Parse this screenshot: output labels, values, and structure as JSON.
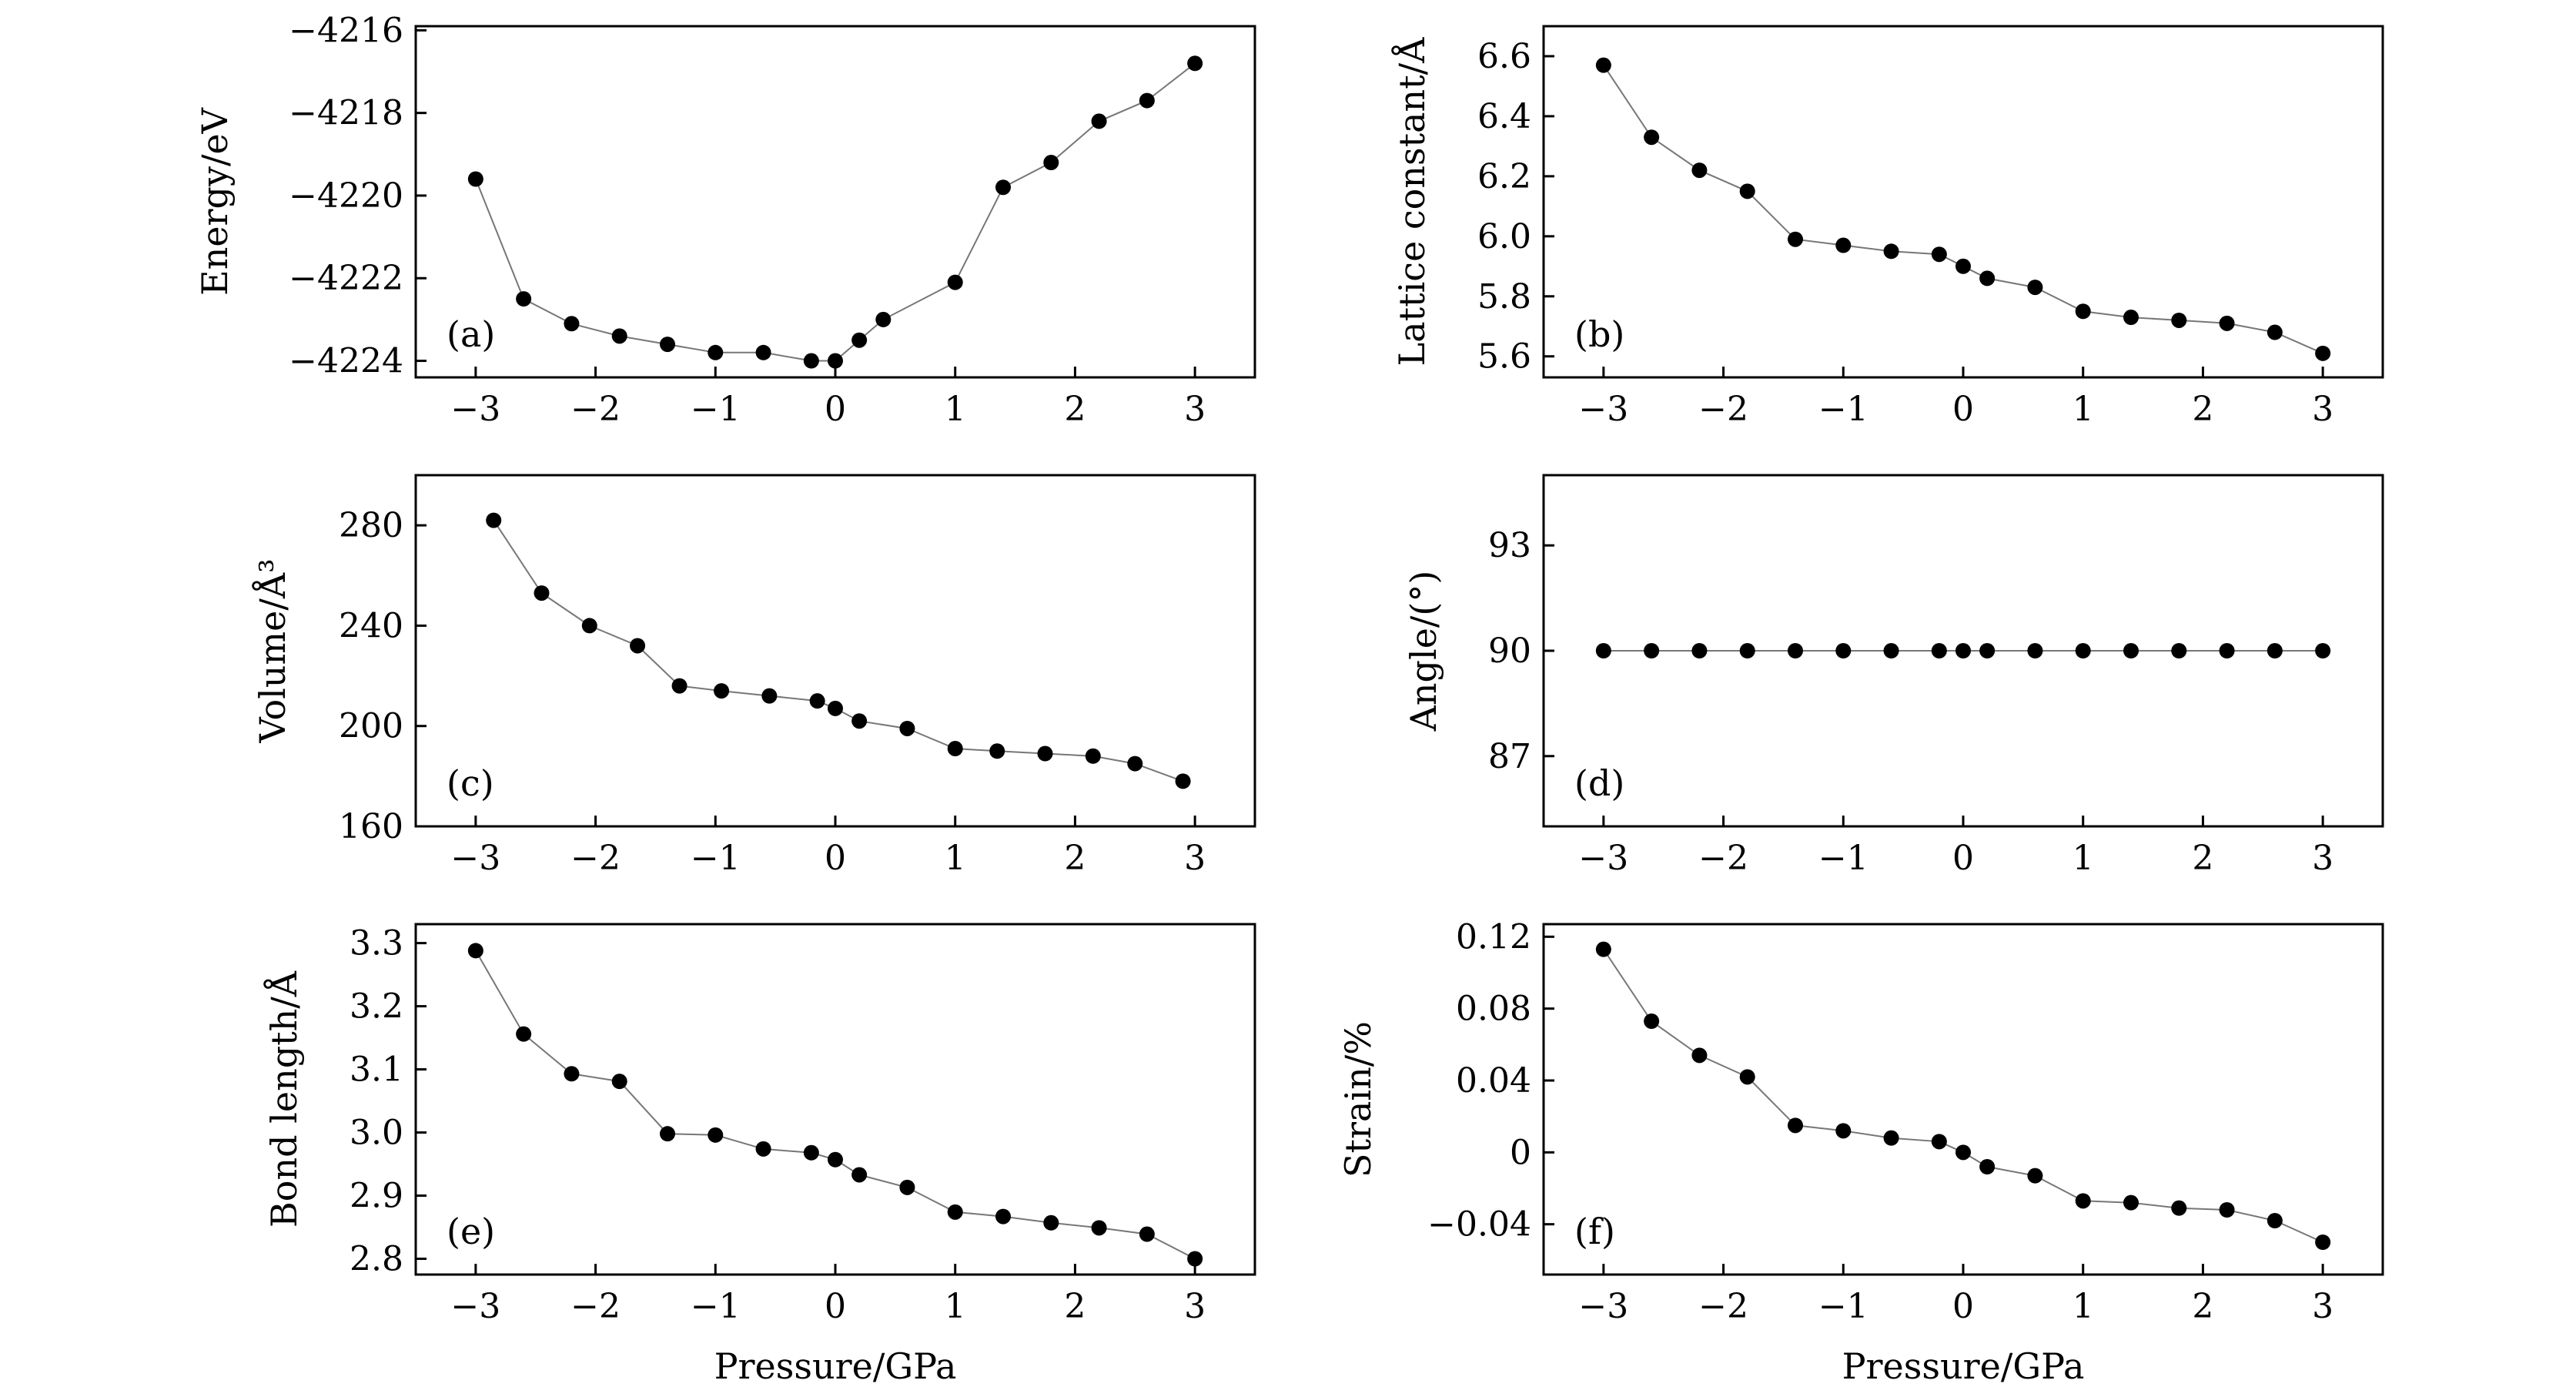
{
  "chart_data": [
    {
      "type": "scatter",
      "panel_label": "(a)",
      "ylabel": "Energy/eV",
      "xlabel": "",
      "xlim": [
        -3.5,
        3.5
      ],
      "ylim": [
        -4224.4,
        -4215.9
      ],
      "xticks": [
        -3,
        -2,
        -1,
        0,
        1,
        2,
        3
      ],
      "xtick_labels": [
        "−3",
        "−2",
        "−1",
        "0",
        "1",
        "2",
        "3"
      ],
      "yticks": [
        -4224,
        -4222,
        -4220,
        -4218,
        -4216
      ],
      "ytick_labels": [
        "−4224",
        "−4222",
        "−4220",
        "−4218",
        "−4216"
      ],
      "series": [
        {
          "x": [
            -3,
            -2.6,
            -2.2,
            -1.8,
            -1.4,
            -1,
            -0.6,
            -0.2,
            0,
            0.2,
            0.4,
            1,
            1.4,
            1.8,
            2.2,
            2.6,
            3
          ],
          "y": [
            -4219.6,
            -4222.5,
            -4223.1,
            -4223.4,
            -4223.6,
            -4223.8,
            -4223.8,
            -4224.0,
            -4224.0,
            -4223.5,
            -4223.0,
            -4222.1,
            -4219.8,
            -4219.2,
            -4218.2,
            -4217.7,
            -4216.8
          ]
        }
      ]
    },
    {
      "type": "scatter",
      "panel_label": "(b)",
      "ylabel": "Lattice constant/Å",
      "xlabel": "",
      "xlim": [
        -3.5,
        3.5
      ],
      "ylim": [
        5.53,
        6.7
      ],
      "xticks": [
        -3,
        -2,
        -1,
        0,
        1,
        2,
        3
      ],
      "xtick_labels": [
        "−3",
        "−2",
        "−1",
        "0",
        "1",
        "2",
        "3"
      ],
      "yticks": [
        5.6,
        5.8,
        6.0,
        6.2,
        6.4,
        6.6
      ],
      "ytick_labels": [
        "5.6",
        "5.8",
        "6.0",
        "6.2",
        "6.4",
        "6.6"
      ],
      "series": [
        {
          "x": [
            -3,
            -2.6,
            -2.2,
            -1.8,
            -1.4,
            -1,
            -0.6,
            -0.2,
            0,
            0.2,
            0.6,
            1,
            1.4,
            1.8,
            2.2,
            2.6,
            3
          ],
          "y": [
            6.57,
            6.33,
            6.22,
            6.15,
            5.99,
            5.97,
            5.95,
            5.94,
            5.9,
            5.86,
            5.83,
            5.75,
            5.73,
            5.72,
            5.71,
            5.68,
            5.61
          ]
        }
      ]
    },
    {
      "type": "scatter",
      "panel_label": "(c)",
      "ylabel": "Volume/Å³",
      "xlabel": "",
      "xlim": [
        -3.5,
        3.5
      ],
      "ylim": [
        160,
        300
      ],
      "xticks": [
        -3,
        -2,
        -1,
        0,
        1,
        2,
        3
      ],
      "xtick_labels": [
        "−3",
        "−2",
        "−1",
        "0",
        "1",
        "2",
        "3"
      ],
      "yticks": [
        160,
        200,
        240,
        280
      ],
      "ytick_labels": [
        "160",
        "200",
        "240",
        "280"
      ],
      "series": [
        {
          "x": [
            -2.85,
            -2.45,
            -2.05,
            -1.65,
            -1.3,
            -0.95,
            -0.55,
            -0.15,
            0,
            0.2,
            0.6,
            1,
            1.35,
            1.75,
            2.15,
            2.5,
            2.9
          ],
          "y": [
            282,
            253,
            240,
            232,
            216,
            214,
            212,
            210,
            207,
            202,
            199,
            191,
            190,
            189,
            188,
            185,
            178
          ]
        }
      ]
    },
    {
      "type": "scatter",
      "panel_label": "(d)",
      "ylabel": "Angle/(°)",
      "xlabel": "",
      "xlim": [
        -3.5,
        3.5
      ],
      "ylim": [
        85,
        95
      ],
      "xticks": [
        -3,
        -2,
        -1,
        0,
        1,
        2,
        3
      ],
      "xtick_labels": [
        "−3",
        "−2",
        "−1",
        "0",
        "1",
        "2",
        "3"
      ],
      "yticks": [
        87,
        90,
        93
      ],
      "ytick_labels": [
        "87",
        "90",
        "93"
      ],
      "series": [
        {
          "x": [
            -3,
            -2.6,
            -2.2,
            -1.8,
            -1.4,
            -1,
            -0.6,
            -0.2,
            0,
            0.2,
            0.6,
            1,
            1.4,
            1.8,
            2.2,
            2.6,
            3
          ],
          "y": [
            90,
            90,
            90,
            90,
            90,
            90,
            90,
            90,
            90,
            90,
            90,
            90,
            90,
            90,
            90,
            90,
            90
          ]
        }
      ]
    },
    {
      "type": "scatter",
      "panel_label": "(e)",
      "ylabel": "Bond length/Å",
      "xlabel": "Pressure/GPa",
      "xlim": [
        -3.5,
        3.5
      ],
      "ylim": [
        2.775,
        3.33
      ],
      "xticks": [
        -3,
        -2,
        -1,
        0,
        1,
        2,
        3
      ],
      "xtick_labels": [
        "−3",
        "−2",
        "−1",
        "0",
        "1",
        "2",
        "3"
      ],
      "yticks": [
        2.8,
        2.9,
        3.0,
        3.1,
        3.2,
        3.3
      ],
      "ytick_labels": [
        "2.8",
        "2.9",
        "3.0",
        "3.1",
        "3.2",
        "3.3"
      ],
      "series": [
        {
          "x": [
            -3,
            -2.6,
            -2.2,
            -1.8,
            -1.4,
            -1,
            -0.6,
            -0.2,
            0,
            0.2,
            0.6,
            1,
            1.4,
            1.8,
            2.2,
            2.6,
            3
          ],
          "y": [
            3.288,
            3.156,
            3.093,
            3.081,
            2.998,
            2.996,
            2.974,
            2.968,
            2.957,
            2.933,
            2.913,
            2.874,
            2.867,
            2.857,
            2.849,
            2.839,
            2.8
          ]
        }
      ]
    },
    {
      "type": "scatter",
      "panel_label": "(f)",
      "ylabel": "Strain/%",
      "xlabel": "Pressure/GPa",
      "xlim": [
        -3.5,
        3.5
      ],
      "ylim": [
        -0.068,
        0.127
      ],
      "xticks": [
        -3,
        -2,
        -1,
        0,
        1,
        2,
        3
      ],
      "xtick_labels": [
        "−3",
        "−2",
        "−1",
        "0",
        "1",
        "2",
        "3"
      ],
      "yticks": [
        -0.04,
        0,
        0.04,
        0.08,
        0.12
      ],
      "ytick_labels": [
        "−0.04",
        "0",
        "0.04",
        "0.08",
        "0.12"
      ],
      "series": [
        {
          "x": [
            -3,
            -2.6,
            -2.2,
            -1.8,
            -1.4,
            -1,
            -0.6,
            -0.2,
            0,
            0.2,
            0.6,
            1,
            1.4,
            1.8,
            2.2,
            2.6,
            3
          ],
          "y": [
            0.113,
            0.073,
            0.054,
            0.042,
            0.015,
            0.012,
            0.008,
            0.006,
            0,
            -0.008,
            -0.013,
            -0.027,
            -0.028,
            -0.031,
            -0.032,
            -0.038,
            -0.05
          ]
        }
      ]
    }
  ]
}
